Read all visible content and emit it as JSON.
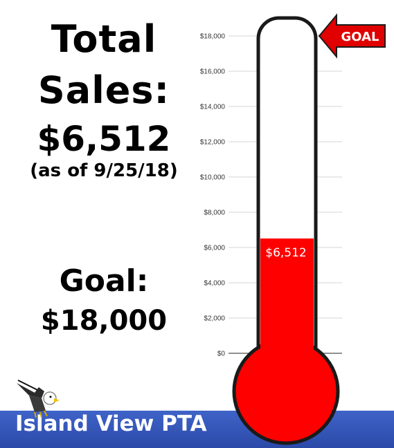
{
  "headline": {
    "line1": "Total",
    "line2": "Sales:",
    "amount": "$6,512",
    "as_of": "(as of 9/25/18)"
  },
  "goal_text": {
    "line1": "Goal:",
    "line2": "$18,000"
  },
  "goal_arrow_label": "GOAL",
  "banner": {
    "label": "Island View PTA"
  },
  "colors": {
    "fill": "#ff0000",
    "banner": "#3558b8",
    "outline": "#1a1a1a"
  },
  "icons": {
    "mascot": "eagle-icon",
    "goal_marker": "arrow-left-icon"
  },
  "chart_data": {
    "type": "thermometer",
    "value": 6512,
    "value_label": "$6,512",
    "goal": 18000,
    "ylim": [
      0,
      18000
    ],
    "y_ticks": [
      0,
      2000,
      4000,
      6000,
      8000,
      10000,
      12000,
      14000,
      16000,
      18000
    ],
    "y_tick_labels": [
      "$0",
      "$2,000",
      "$4,000",
      "$6,000",
      "$8,000",
      "$10,000",
      "$12,000",
      "$14,000",
      "$16,000",
      "$18,000"
    ],
    "grid": true
  }
}
